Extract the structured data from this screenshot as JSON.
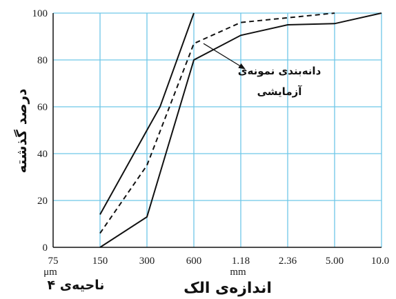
{
  "chart_data": {
    "type": "line",
    "title": "",
    "xlabel": "اندازه‌ی الک",
    "ylabel": "درصد گذشته",
    "x": [
      "75 μm",
      "150",
      "300",
      "600",
      "1.18 mm",
      "2.36",
      "5.00",
      "10.0"
    ],
    "x_tick_labels": [
      "75",
      "150",
      "300",
      "600",
      "1.18",
      "2.36",
      "5.00",
      "10.0"
    ],
    "x_tick_sublabels": [
      "μm",
      "",
      "",
      "",
      "mm",
      "",
      "",
      ""
    ],
    "yticks": [
      "0",
      "20",
      "40",
      "60",
      "80",
      "100"
    ],
    "ylim": [
      0,
      100
    ],
    "grid": true,
    "series": [
      {
        "style": "solid",
        "points": [
          [
            "150",
            14
          ],
          [
            "300",
            50
          ],
          [
            "350",
            60
          ],
          [
            "600",
            100
          ]
        ]
      },
      {
        "style": "solid",
        "points": [
          [
            "150",
            0
          ],
          [
            "300",
            13
          ],
          [
            "600",
            80
          ],
          [
            "1.18 mm",
            90.5
          ],
          [
            "2.36",
            95
          ],
          [
            "5.00",
            95.5
          ],
          [
            "10.0",
            100
          ]
        ]
      },
      {
        "style": "dashed",
        "points": [
          [
            "150",
            6
          ],
          [
            "300",
            35
          ],
          [
            "600",
            87
          ],
          [
            "1.18 mm",
            96
          ],
          [
            "2.36",
            98
          ],
          [
            "5.00",
            100
          ]
        ]
      }
    ],
    "annotation": {
      "lines": [
        "دانه‌بندی نمونه‌ی",
        "آزمایشی"
      ],
      "points_to_series": 2
    },
    "zone_label": "ناحیه‌ی ۴",
    "colors": {
      "grid": "#6ec6e8",
      "line": "#111111"
    }
  }
}
